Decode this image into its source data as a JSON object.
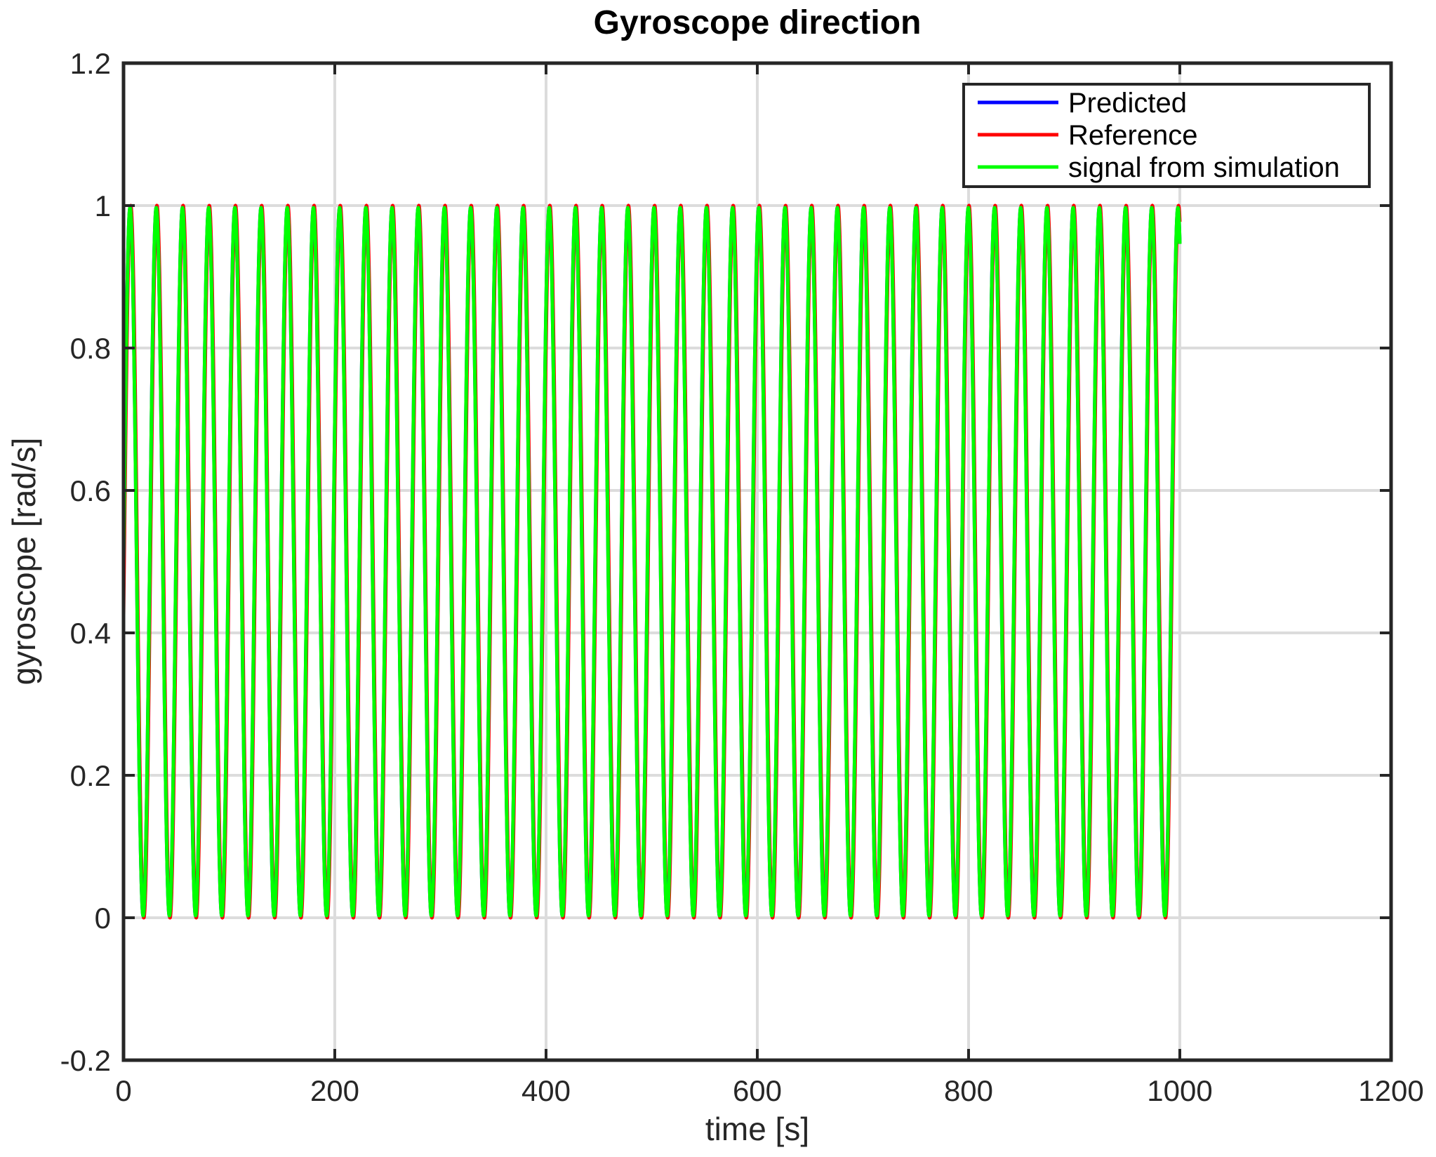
{
  "chart_data": {
    "type": "line",
    "title": "Gyroscope  direction",
    "xlabel": "time [s]",
    "ylabel": "gyroscope [rad/s]",
    "xlim": [
      0,
      1200
    ],
    "ylim": [
      -0.2,
      1.2
    ],
    "xticks": [
      0,
      200,
      400,
      600,
      800,
      1000,
      1200
    ],
    "xtick_labels": [
      "0",
      "200",
      "400",
      "600",
      "800",
      "1000",
      "1200"
    ],
    "yticks": [
      -0.2,
      0,
      0.2,
      0.4,
      0.6,
      0.8,
      1,
      1.2
    ],
    "ytick_labels": [
      "-0.2",
      "0",
      "0.2",
      "0.4",
      "0.6",
      "0.8",
      "1",
      "1.2"
    ],
    "grid": true,
    "legend_position": "top-right",
    "signal": {
      "form": "0.5 + 0.5*sin(2*pi*t/period)",
      "t_start": 0,
      "t_end": 1000,
      "period": 24.8,
      "offset": 0.5,
      "amplitude": 0.5
    },
    "series": [
      {
        "name": "Predicted",
        "color": "#0000ff",
        "amplitude": 0.497,
        "phase_shift": 0
      },
      {
        "name": "Reference",
        "color": "#ff0000",
        "amplitude": 0.5,
        "phase_shift": 0.6
      },
      {
        "name": "signal from simulation",
        "color": "#00ff00",
        "amplitude": 0.497,
        "phase_shift": 0
      }
    ]
  }
}
